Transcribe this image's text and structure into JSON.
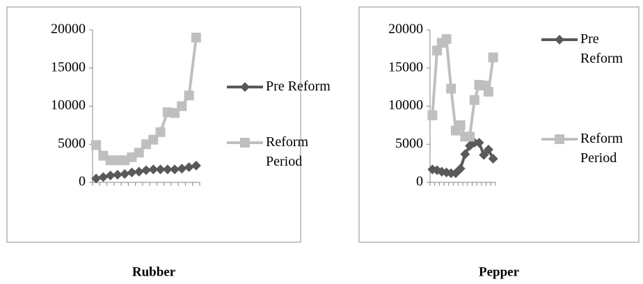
{
  "chart_data": [
    {
      "type": "line",
      "title": "Rubber",
      "categories": [
        null,
        null,
        null,
        null,
        null,
        null,
        null,
        null,
        null,
        null,
        null,
        null,
        null,
        null,
        null
      ],
      "series": [
        {
          "name": "Pre Reform",
          "color": "#595959",
          "marker": "diamond",
          "values": [
            500,
            700,
            900,
            1000,
            1100,
            1300,
            1400,
            1600,
            1700,
            1700,
            1700,
            1700,
            1800,
            2000,
            2200
          ]
        },
        {
          "name": "Reform Period",
          "color": "#bfbfbf",
          "marker": "square",
          "values": [
            4900,
            3500,
            2900,
            2900,
            2900,
            3300,
            3900,
            5000,
            5600,
            6600,
            9200,
            9100,
            10000,
            11400,
            19000
          ]
        }
      ],
      "ylim": [
        0,
        20000
      ],
      "yticks": [
        0,
        5000,
        10000,
        15000,
        20000
      ],
      "grid": false,
      "legend": "right"
    },
    {
      "type": "line",
      "title": "Pepper",
      "categories": [
        null,
        null,
        null,
        null,
        null,
        null,
        null,
        null,
        null,
        null,
        null,
        null,
        null,
        null
      ],
      "series": [
        {
          "name": "Pre Reform",
          "color": "#595959",
          "marker": "diamond",
          "values": [
            1700,
            1600,
            1400,
            1300,
            1200,
            1200,
            1800,
            3700,
            4800,
            5200,
            5200,
            3600,
            4300,
            3100
          ]
        },
        {
          "name": "Reform Period",
          "color": "#bfbfbf",
          "marker": "square",
          "values": [
            8800,
            17300,
            18300,
            18800,
            12300,
            6800,
            7500,
            6000,
            6000,
            10800,
            12800,
            12700,
            11900,
            16400
          ]
        }
      ],
      "ylim": [
        0,
        20000
      ],
      "yticks": [
        0,
        5000,
        10000,
        15000,
        20000
      ],
      "grid": false,
      "legend": "right"
    }
  ]
}
